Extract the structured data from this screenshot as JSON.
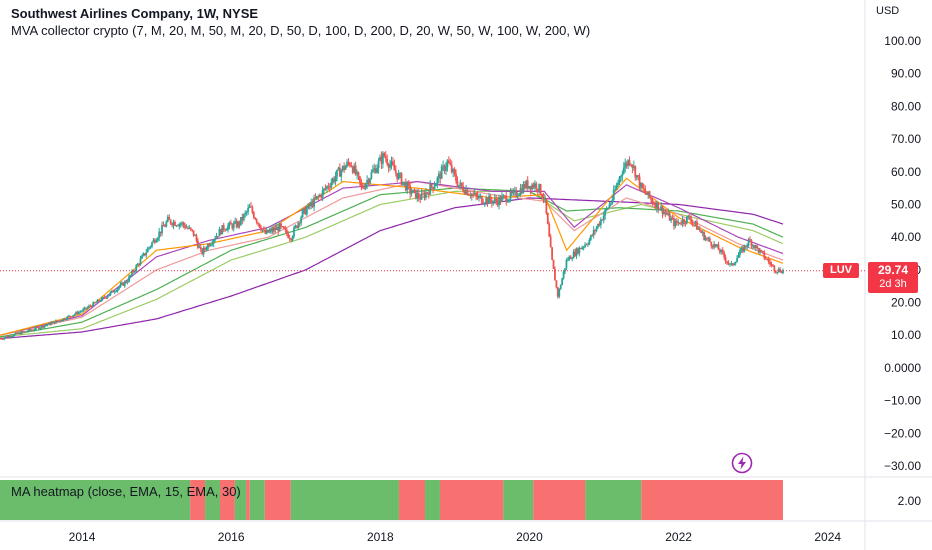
{
  "header": {
    "title": "Southwest Airlines Company, 1W, NYSE",
    "indicator": "MVA collector crypto (7, M, 20, M, 50, M, 20, D, 50, D, 100, D, 200, D, 20, W, 50, W, 100, W, 200, W)",
    "currency": "USD"
  },
  "price_label": {
    "ticker": "LUV",
    "price": "29.74",
    "countdown": "2d 3h"
  },
  "subpane": {
    "legend": "MA heatmap (close, EMA, 15, EMA, 30)",
    "axis_label": "2.00"
  },
  "colors": {
    "up": "#26a69a",
    "down": "#ef5350",
    "heat_green": "#6bbd6b",
    "heat_red": "#f87171",
    "last_price": "#f23645"
  },
  "chart_data": {
    "type": "candlestick",
    "title": "Southwest Airlines Company, 1W, NYSE",
    "y_ticks": [
      "100.00",
      "90.00",
      "80.00",
      "70.00",
      "60.00",
      "50.00",
      "40.00",
      "30.00",
      "20.00",
      "10.00",
      "0.0000",
      "−10.00",
      "−20.00",
      "−30.00"
    ],
    "y_tick_values": [
      100,
      90,
      80,
      70,
      60,
      50,
      40,
      30,
      20,
      10,
      0,
      -10,
      -20,
      -30
    ],
    "x_ticks": [
      "2014",
      "2016",
      "2018",
      "2020",
      "2022",
      "2024"
    ],
    "x_tick_years": [
      2014,
      2016,
      2018,
      2020,
      2022,
      2024
    ],
    "ylim": [
      -33,
      112
    ],
    "xlim": [
      2012.9,
      2024.5
    ],
    "last_price": 29.74,
    "price_path": [
      [
        2012.9,
        9
      ],
      [
        2013.3,
        11.5
      ],
      [
        2013.7,
        14.5
      ],
      [
        2014.0,
        17.5
      ],
      [
        2014.3,
        21.5
      ],
      [
        2014.6,
        26.5
      ],
      [
        2014.9,
        37
      ],
      [
        2015.15,
        45
      ],
      [
        2015.35,
        44
      ],
      [
        2015.5,
        41
      ],
      [
        2015.6,
        35
      ],
      [
        2015.7,
        38
      ],
      [
        2015.9,
        43
      ],
      [
        2016.1,
        44
      ],
      [
        2016.25,
        49
      ],
      [
        2016.45,
        41
      ],
      [
        2016.65,
        43
      ],
      [
        2016.8,
        40
      ],
      [
        2016.95,
        47
      ],
      [
        2017.2,
        53
      ],
      [
        2017.45,
        60
      ],
      [
        2017.6,
        63
      ],
      [
        2017.75,
        55
      ],
      [
        2017.9,
        60
      ],
      [
        2018.05,
        65
      ],
      [
        2018.2,
        60
      ],
      [
        2018.4,
        54
      ],
      [
        2018.55,
        52
      ],
      [
        2018.75,
        57
      ],
      [
        2018.9,
        63
      ],
      [
        2019.05,
        56
      ],
      [
        2019.3,
        52
      ],
      [
        2019.55,
        51
      ],
      [
        2019.8,
        53
      ],
      [
        2019.95,
        56
      ],
      [
        2020.1,
        56
      ],
      [
        2020.2,
        52
      ],
      [
        2020.3,
        33
      ],
      [
        2020.38,
        22
      ],
      [
        2020.5,
        33
      ],
      [
        2020.65,
        36
      ],
      [
        2020.8,
        39
      ],
      [
        2020.95,
        45
      ],
      [
        2021.1,
        51
      ],
      [
        2021.25,
        61
      ],
      [
        2021.35,
        64
      ],
      [
        2021.5,
        55
      ],
      [
        2021.65,
        51
      ],
      [
        2021.8,
        48
      ],
      [
        2021.95,
        44
      ],
      [
        2022.15,
        46
      ],
      [
        2022.35,
        40
      ],
      [
        2022.55,
        36
      ],
      [
        2022.7,
        31
      ],
      [
        2022.85,
        36
      ],
      [
        2022.95,
        39
      ],
      [
        2023.15,
        34
      ],
      [
        2023.3,
        30
      ],
      [
        2023.4,
        29.74
      ]
    ],
    "moving_averages": [
      {
        "color": "#9ccc65",
        "points": [
          [
            2012.9,
            9.5
          ],
          [
            2014.0,
            12
          ],
          [
            2015.0,
            21
          ],
          [
            2016.0,
            33
          ],
          [
            2017.0,
            40
          ],
          [
            2018.0,
            50
          ],
          [
            2019.0,
            54
          ],
          [
            2020.0,
            54
          ],
          [
            2020.6,
            45
          ],
          [
            2021.5,
            50
          ],
          [
            2022.2,
            46
          ],
          [
            2023.0,
            42
          ],
          [
            2023.4,
            38
          ]
        ]
      },
      {
        "color": "#8e24aa",
        "points": [
          [
            2012.9,
            9
          ],
          [
            2014.0,
            11
          ],
          [
            2015.0,
            15
          ],
          [
            2016.0,
            22
          ],
          [
            2017.0,
            30
          ],
          [
            2018.0,
            42
          ],
          [
            2019.0,
            49
          ],
          [
            2020.0,
            52
          ],
          [
            2021.0,
            51
          ],
          [
            2022.0,
            50
          ],
          [
            2023.0,
            47
          ],
          [
            2023.4,
            44
          ]
        ]
      },
      {
        "color": "#4caf50",
        "points": [
          [
            2012.9,
            9.5
          ],
          [
            2014.0,
            14
          ],
          [
            2015.0,
            24
          ],
          [
            2016.0,
            36
          ],
          [
            2017.0,
            43
          ],
          [
            2018.0,
            53
          ],
          [
            2019.0,
            55
          ],
          [
            2020.0,
            54
          ],
          [
            2020.5,
            48
          ],
          [
            2021.2,
            49
          ],
          [
            2022.0,
            48
          ],
          [
            2023.0,
            44
          ],
          [
            2023.4,
            40
          ]
        ]
      },
      {
        "color": "#ef9a9a",
        "points": [
          [
            2012.9,
            10
          ],
          [
            2014.0,
            15.5
          ],
          [
            2015.0,
            30
          ],
          [
            2015.7,
            36
          ],
          [
            2016.5,
            40
          ],
          [
            2017.5,
            52
          ],
          [
            2018.5,
            57
          ],
          [
            2019.5,
            53
          ],
          [
            2020.2,
            51
          ],
          [
            2020.6,
            42
          ],
          [
            2021.3,
            52
          ],
          [
            2022.0,
            47
          ],
          [
            2022.8,
            38
          ],
          [
            2023.4,
            33
          ]
        ]
      },
      {
        "color": "#ab47bc",
        "points": [
          [
            2012.9,
            10
          ],
          [
            2014.0,
            16
          ],
          [
            2015.0,
            34
          ],
          [
            2015.7,
            39
          ],
          [
            2016.5,
            43
          ],
          [
            2017.5,
            55
          ],
          [
            2018.5,
            57
          ],
          [
            2019.5,
            54
          ],
          [
            2020.2,
            54
          ],
          [
            2020.6,
            43
          ],
          [
            2021.3,
            56
          ],
          [
            2022.0,
            49
          ],
          [
            2022.8,
            40
          ],
          [
            2023.4,
            35
          ]
        ]
      },
      {
        "color": "#ff9800",
        "points": [
          [
            2012.9,
            10
          ],
          [
            2014.0,
            16.5
          ],
          [
            2015.0,
            36
          ],
          [
            2015.7,
            38
          ],
          [
            2016.5,
            42
          ],
          [
            2017.5,
            57
          ],
          [
            2018.5,
            55
          ],
          [
            2019.5,
            52
          ],
          [
            2020.2,
            53
          ],
          [
            2020.5,
            36
          ],
          [
            2021.3,
            58
          ],
          [
            2022.0,
            46
          ],
          [
            2022.8,
            37
          ],
          [
            2023.4,
            32
          ]
        ]
      }
    ],
    "heatmap": [
      [
        "g",
        2012.9,
        2015.45
      ],
      [
        "r",
        2015.45,
        2015.65
      ],
      [
        "g",
        2015.65,
        2015.85
      ],
      [
        "r",
        2015.85,
        2016.05
      ],
      [
        "g",
        2016.05,
        2016.2
      ],
      [
        "r",
        2016.2,
        2016.25
      ],
      [
        "g",
        2016.25,
        2016.45
      ],
      [
        "r",
        2016.45,
        2016.8
      ],
      [
        "g",
        2016.8,
        2018.25
      ],
      [
        "r",
        2018.25,
        2018.6
      ],
      [
        "g",
        2018.6,
        2018.8
      ],
      [
        "r",
        2018.8,
        2019.65
      ],
      [
        "g",
        2019.65,
        2020.05
      ],
      [
        "r",
        2020.05,
        2020.75
      ],
      [
        "g",
        2020.75,
        2021.5
      ],
      [
        "r",
        2021.5,
        2023.4
      ]
    ]
  }
}
